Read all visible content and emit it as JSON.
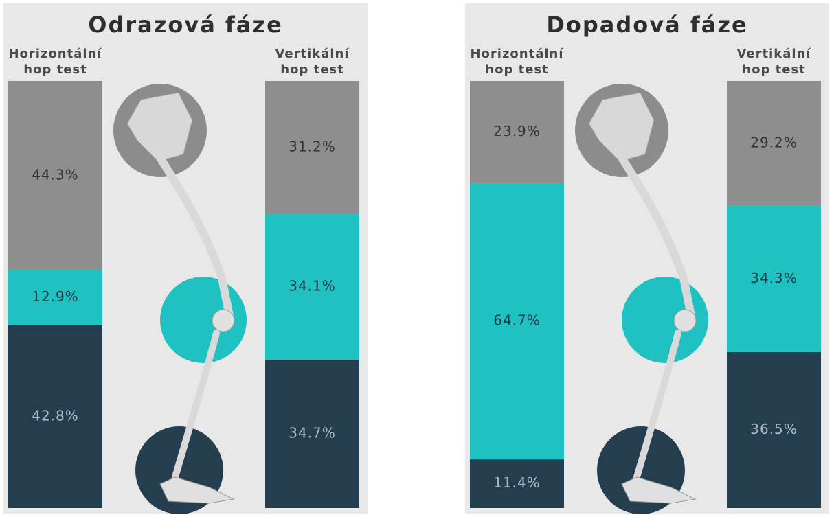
{
  "chart_data": [
    {
      "type": "stacked_bar",
      "title": "Odrazová fáze",
      "categories": [
        "Horizontální hop test",
        "Vertikální hop test"
      ],
      "series": [
        {
          "color": "#243e4f",
          "values": [
            42.8,
            34.7
          ],
          "value_labels": [
            "42.8%",
            "34.7%"
          ]
        },
        {
          "color": "#1fc1c1",
          "values": [
            12.9,
            34.1
          ],
          "value_labels": [
            "12.9%",
            "34.1%"
          ]
        },
        {
          "color": "#8e8e8e",
          "values": [
            44.3,
            31.2
          ],
          "value_labels": [
            "44.3%",
            "31.2%"
          ]
        }
      ]
    },
    {
      "type": "stacked_bar",
      "title": "Dopadová fáze",
      "categories": [
        "Horizontální hop test",
        "Vertikální hop test"
      ],
      "series": [
        {
          "color": "#243e4f",
          "values": [
            11.4,
            36.5
          ],
          "value_labels": [
            "11.4%",
            "36.5%"
          ]
        },
        {
          "color": "#1fc1c1",
          "values": [
            64.7,
            34.3
          ],
          "value_labels": [
            "64.7%",
            "34.3%"
          ]
        },
        {
          "color": "#8e8e8e",
          "values": [
            23.9,
            29.2
          ],
          "value_labels": [
            "23.9%",
            "29.2%"
          ]
        }
      ]
    }
  ]
}
